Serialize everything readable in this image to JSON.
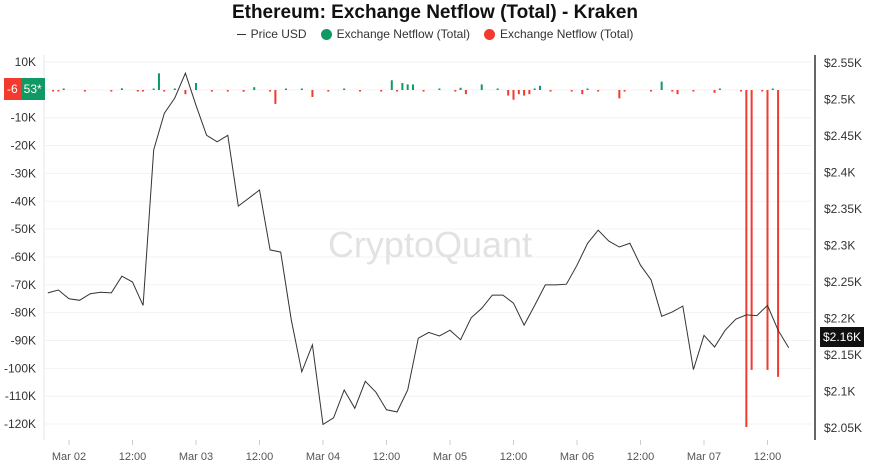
{
  "chart_data": {
    "type": "line+bar",
    "title": "Ethereum: Exchange Netflow (Total) - Kraken",
    "legend": [
      "Price USD",
      "Exchange Netflow (Total)",
      "Exchange Netflow (Total)"
    ],
    "legend_placement": "top",
    "watermark": "CryptoQuant",
    "colors": {
      "price": "#333333",
      "inflow": "#0e9a62",
      "outflow": "#f23a2f"
    },
    "left_axis": {
      "ticks": [
        "10K",
        "0",
        "-10K",
        "-20K",
        "-30K",
        "-40K",
        "-50K",
        "-60K",
        "-70K",
        "-80K",
        "-90K",
        "-100K",
        "-110K",
        "-120K"
      ],
      "range": [
        -120000,
        10000
      ]
    },
    "right_axis": {
      "ticks": [
        "$2.55K",
        "$2.5K",
        "$2.45K",
        "$2.4K",
        "$2.35K",
        "$2.3K",
        "$2.25K",
        "$2.2K",
        "$2.15K",
        "$2.1K",
        "$2.05K"
      ],
      "range": [
        2050,
        2550
      ]
    },
    "x_ticks": [
      "Mar 02",
      "12:00",
      "Mar 03",
      "12:00",
      "Mar 04",
      "12:00",
      "Mar 05",
      "12:00",
      "Mar 06",
      "12:00",
      "Mar 07",
      "12:00"
    ],
    "grid": true,
    "current_value_badges": {
      "outflow": "-6",
      "inflow": "53*"
    },
    "price_label": "$2.16K",
    "price": {
      "start": "Mar 01 20:00",
      "interval_hours": 2,
      "values": [
        2235,
        2239,
        2227,
        2225,
        2234,
        2236,
        2235,
        2258,
        2250,
        2218,
        2431,
        2481,
        2502,
        2536,
        2492,
        2451,
        2442,
        2451,
        2354,
        2365,
        2376,
        2294,
        2291,
        2198,
        2127,
        2164,
        2055,
        2064,
        2102,
        2077,
        2114,
        2099,
        2075,
        2072,
        2102,
        2173,
        2181,
        2176,
        2184,
        2171,
        2201,
        2214,
        2232,
        2232,
        2221,
        2191,
        2218,
        2246,
        2246,
        2247,
        2273,
        2303,
        2321,
        2306,
        2298,
        2303,
        2273,
        2253,
        2203,
        2209,
        2217,
        2130,
        2177,
        2161,
        2184,
        2199,
        2205,
        2204,
        2218,
        2184,
        2160
      ]
    },
    "netflow": [
      {
        "t": "Mar 01 21:00",
        "v": -300
      },
      {
        "t": "Mar 01 22:00",
        "v": -300
      },
      {
        "t": "Mar 01 23:00",
        "v": 500
      },
      {
        "t": "Mar 02 03:00",
        "v": -300
      },
      {
        "t": "Mar 02 08:00",
        "v": -300
      },
      {
        "t": "Mar 02 10:00",
        "v": 600
      },
      {
        "t": "Mar 02 13:00",
        "v": -300
      },
      {
        "t": "Mar 02 14:00",
        "v": -300
      },
      {
        "t": "Mar 02 16:00",
        "v": 500
      },
      {
        "t": "Mar 02 17:00",
        "v": 6000
      },
      {
        "t": "Mar 02 18:00",
        "v": -300
      },
      {
        "t": "Mar 02 20:00",
        "v": 300
      },
      {
        "t": "Mar 02 22:00",
        "v": -1500
      },
      {
        "t": "Mar 03 00:00",
        "v": 2500
      },
      {
        "t": "Mar 03 03:00",
        "v": -500
      },
      {
        "t": "Mar 03 06:00",
        "v": -300
      },
      {
        "t": "Mar 03 09:00",
        "v": -600
      },
      {
        "t": "Mar 03 11:00",
        "v": 1000
      },
      {
        "t": "Mar 03 14:00",
        "v": -300
      },
      {
        "t": "Mar 03 15:00",
        "v": -5000
      },
      {
        "t": "Mar 03 17:00",
        "v": 300
      },
      {
        "t": "Mar 03 20:00",
        "v": 300
      },
      {
        "t": "Mar 03 22:00",
        "v": -2500
      },
      {
        "t": "Mar 04 01:00",
        "v": -300
      },
      {
        "t": "Mar 04 04:00",
        "v": 300
      },
      {
        "t": "Mar 04 07:00",
        "v": -300
      },
      {
        "t": "Mar 04 11:00",
        "v": -300
      },
      {
        "t": "Mar 04 13:00",
        "v": 3500
      },
      {
        "t": "Mar 04 14:00",
        "v": -300
      },
      {
        "t": "Mar 04 15:00",
        "v": 2500
      },
      {
        "t": "Mar 04 16:00",
        "v": 2000
      },
      {
        "t": "Mar 04 17:00",
        "v": 2000
      },
      {
        "t": "Mar 04 19:00",
        "v": -500
      },
      {
        "t": "Mar 04 22:00",
        "v": 300
      },
      {
        "t": "Mar 05 01:00",
        "v": -300
      },
      {
        "t": "Mar 05 02:00",
        "v": 800
      },
      {
        "t": "Mar 05 03:00",
        "v": -1500
      },
      {
        "t": "Mar 05 06:00",
        "v": 2000
      },
      {
        "t": "Mar 05 09:00",
        "v": 300
      },
      {
        "t": "Mar 05 11:00",
        "v": -2000
      },
      {
        "t": "Mar 05 12:00",
        "v": -3500
      },
      {
        "t": "Mar 05 13:00",
        "v": -1500
      },
      {
        "t": "Mar 05 14:00",
        "v": -2000
      },
      {
        "t": "Mar 05 15:00",
        "v": -1500
      },
      {
        "t": "Mar 05 16:00",
        "v": 500
      },
      {
        "t": "Mar 05 17:00",
        "v": 1500
      },
      {
        "t": "Mar 05 19:00",
        "v": -300
      },
      {
        "t": "Mar 05 23:00",
        "v": -300
      },
      {
        "t": "Mar 06 01:00",
        "v": -1500
      },
      {
        "t": "Mar 06 02:00",
        "v": 300
      },
      {
        "t": "Mar 06 04:00",
        "v": -300
      },
      {
        "t": "Mar 06 08:00",
        "v": -3000
      },
      {
        "t": "Mar 06 09:00",
        "v": -300
      },
      {
        "t": "Mar 06 14:00",
        "v": -300
      },
      {
        "t": "Mar 06 16:00",
        "v": 3000
      },
      {
        "t": "Mar 06 18:00",
        "v": -300
      },
      {
        "t": "Mar 06 19:00",
        "v": -1500
      },
      {
        "t": "Mar 06 22:00",
        "v": -300
      },
      {
        "t": "Mar 07 02:00",
        "v": -1000
      },
      {
        "t": "Mar 07 03:00",
        "v": 300
      },
      {
        "t": "Mar 07 07:00",
        "v": -300
      },
      {
        "t": "Mar 07 08:00",
        "v": -121000
      },
      {
        "t": "Mar 07 09:00",
        "v": -100500
      },
      {
        "t": "Mar 07 11:00",
        "v": -300
      },
      {
        "t": "Mar 07 12:00",
        "v": -100500
      },
      {
        "t": "Mar 07 13:00",
        "v": 300
      },
      {
        "t": "Mar 07 14:00",
        "v": -103000
      }
    ]
  }
}
